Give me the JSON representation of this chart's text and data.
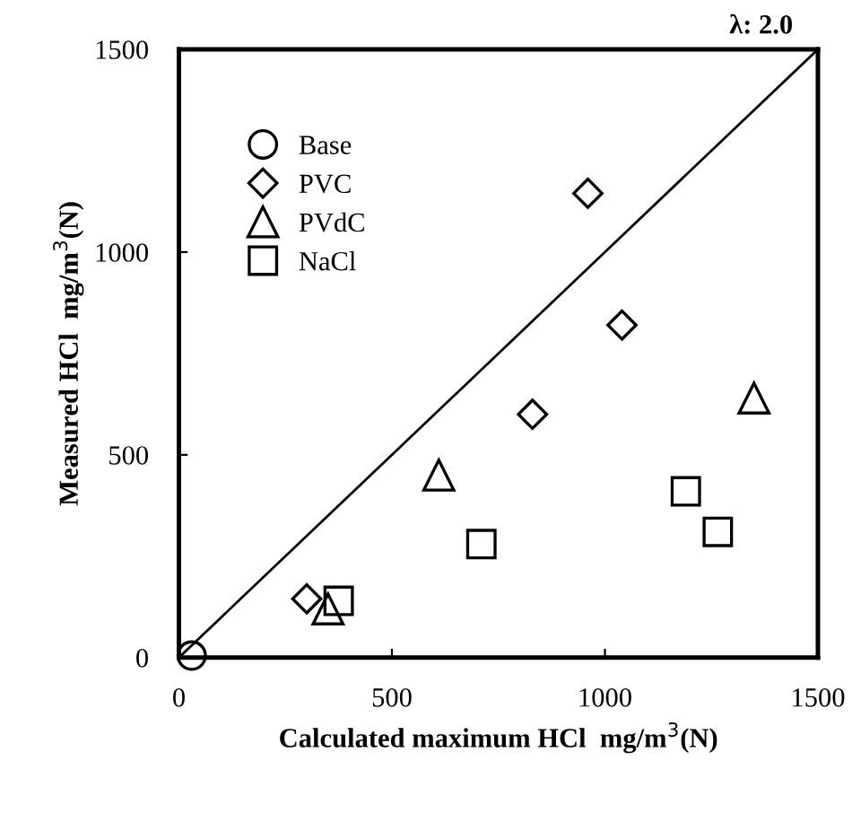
{
  "chart_data": {
    "type": "scatter",
    "xlabel": "Calculated maximum HCl  mg/m$^{3}$(N)",
    "ylabel": "Measured HCl  mg/m$^{3}$(N)",
    "xlim": [
      0,
      1500
    ],
    "ylim": [
      0,
      1500
    ],
    "xticks": [
      0,
      500,
      1000,
      1500
    ],
    "yticks": [
      0,
      500,
      1000,
      1500
    ],
    "grid": false,
    "legend": "top left",
    "series": [
      {
        "name": "Base",
        "marker": "circle",
        "color": "#000000",
        "x": [
          30
        ],
        "values": [
          5
        ]
      },
      {
        "name": "PVC",
        "marker": "diamond",
        "color": "#000000",
        "x": [
          300,
          830,
          960,
          1040
        ],
        "values": [
          145,
          600,
          1145,
          820
        ]
      },
      {
        "name": "PVdC",
        "marker": "triangle",
        "color": "#000000",
        "x": [
          350,
          610,
          1350
        ],
        "values": [
          120,
          450,
          640
        ]
      },
      {
        "name": "NaCl",
        "marker": "square",
        "color": "#000000",
        "x": [
          375,
          710,
          1190,
          1265
        ],
        "values": [
          140,
          280,
          410,
          310
        ]
      },
      {
        "type": "line",
        "marker": "none",
        "line_style": "solid",
        "color": "#000000",
        "x": [
          0,
          1500
        ],
        "values": [
          0,
          1500
        ]
      }
    ],
    "annotations": [
      {
        "text": "λ: 2.0",
        "x": 1500,
        "y": 1500
      }
    ]
  }
}
